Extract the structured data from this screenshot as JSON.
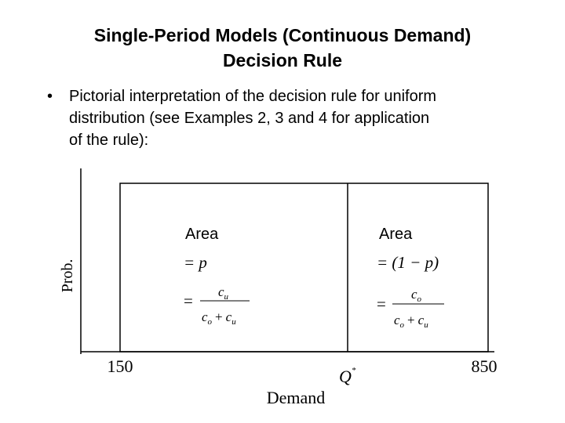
{
  "header": {
    "title": [
      "Single-Period Models (Continuous Demand)",
      "Decision Rule"
    ]
  },
  "bullet": {
    "marker": "•",
    "lines": [
      "Pictorial interpretation of the decision rule for uniform",
      "distribution (see Examples 2, 3 and 4 for application",
      "of the rule):"
    ]
  },
  "diagram": {
    "y_label": "Prob.",
    "x_label": "Demand",
    "x_ticks": [
      "150",
      "850"
    ],
    "q_star": {
      "base": "Q",
      "sup": "*"
    },
    "left": {
      "area": "Area",
      "equals_p": "= p",
      "equals": "=",
      "numerator": {
        "base": "c",
        "sub": "u"
      },
      "denominator": [
        {
          "base": "c",
          "sub": "o"
        },
        "+",
        {
          "base": "c",
          "sub": "u"
        }
      ]
    },
    "right": {
      "area": "Area",
      "equals_p": "= (1 − p)",
      "equals": "=",
      "numerator": {
        "base": "c",
        "sub": "o"
      },
      "denominator": [
        {
          "base": "c",
          "sub": "o"
        },
        "+",
        {
          "base": "c",
          "sub": "u"
        }
      ]
    }
  }
}
